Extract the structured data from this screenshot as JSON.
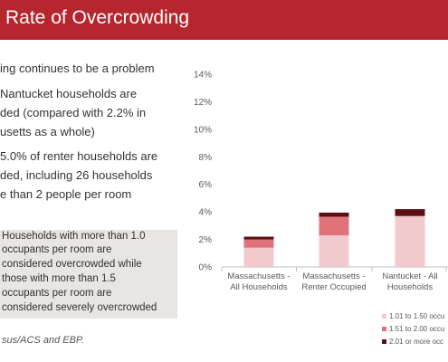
{
  "slide": {
    "title": "Rate of Overcrowding",
    "bullets": [
      "ing continues to be a problem",
      "Nantucket households are",
      "ded (compared with 2.2% in",
      "usetts as a whole)",
      "5.0% of renter households are",
      "ded, including 26 households",
      "e than 2 people per room"
    ],
    "note": [
      "Households with more than 1.0",
      "occupants per room are",
      "considered overcrowded while",
      "those with more than 1.5",
      "occupants per room are",
      "considered severely overcrowded"
    ],
    "source": "sus/ACS and EBP."
  },
  "colors": {
    "title_bar": "#b5262e",
    "series_1": "#f2c9cc",
    "series_2": "#e0737a",
    "series_3": "#5a0f14"
  },
  "chart_data": {
    "type": "bar",
    "stacked": true,
    "categories": [
      [
        "Massachusetts -",
        "All Households"
      ],
      [
        "Massachusetts -",
        "Renter Occupied"
      ],
      [
        "Nantucket - All",
        "Households"
      ]
    ],
    "series": [
      {
        "name": "1.01 to 1.50 occu",
        "values": [
          1.4,
          2.3,
          3.7
        ]
      },
      {
        "name": "1.51 to 2.00 occu",
        "values": [
          0.6,
          1.35,
          0.0
        ]
      },
      {
        "name": "2.01 or more occ",
        "values": [
          0.2,
          0.3,
          0.5
        ]
      }
    ],
    "ylim": [
      0,
      14
    ],
    "yticks": [
      "0%",
      "2%",
      "4%",
      "6%",
      "8%",
      "10%",
      "12%",
      "14%"
    ],
    "grid": false,
    "legend": "bottom-right"
  }
}
